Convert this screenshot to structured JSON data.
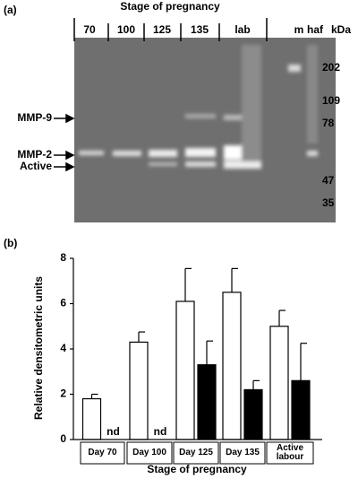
{
  "panel_a": {
    "label": "(a)",
    "title": "Stage of pregnancy",
    "lanes": [
      "70",
      "100",
      "125",
      "135",
      "lab"
    ],
    "extra_lanes": [
      "m",
      "haf"
    ],
    "unit": "kDa",
    "markers": [
      202,
      109,
      78,
      47,
      35
    ],
    "bands": [
      "MMP-9",
      "MMP-2",
      "Active"
    ]
  },
  "chart_data": {
    "type": "bar",
    "panel_label": "(b)",
    "x_label": "Stage of pregnancy",
    "y_label": "Relative densitometric units",
    "categories": [
      "Day 70",
      "Day 100",
      "Day 125",
      "Day 135",
      "Active labour"
    ],
    "series": [
      {
        "color": "#ffffff",
        "values": [
          1.8,
          4.3,
          6.1,
          6.5,
          5.0
        ],
        "errors": [
          0.2,
          0.45,
          1.45,
          1.05,
          0.7
        ]
      },
      {
        "color": "#000000",
        "values": [
          null,
          null,
          3.3,
          2.2,
          2.6
        ],
        "errors": [
          null,
          null,
          1.05,
          0.4,
          1.65
        ],
        "value_labels": [
          "nd",
          "nd",
          null,
          null,
          null
        ]
      }
    ],
    "ylim": [
      0,
      8
    ],
    "yticks": [
      0,
      2,
      4,
      6,
      8
    ]
  }
}
